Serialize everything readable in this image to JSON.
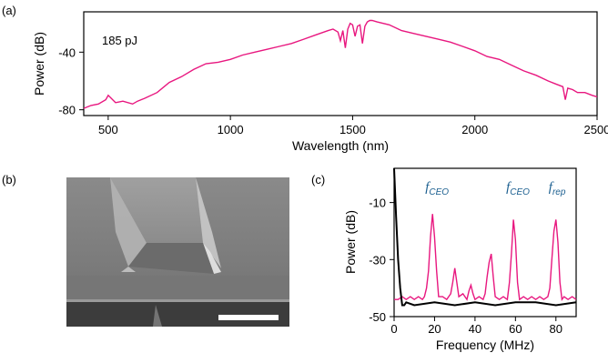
{
  "panel_a": {
    "label": "(a)",
    "ylabel": "Power (dB)",
    "xlabel": "Wavelength (nm)",
    "annotation": "185 pJ",
    "xticks": [
      "500",
      "1000",
      "1500",
      "2000",
      "2500"
    ],
    "yticks": [
      "-40",
      "-80"
    ]
  },
  "panel_b": {
    "label": "(b)"
  },
  "panel_c": {
    "label": "(c)",
    "ylabel": "Power (dB)",
    "xlabel": "Frequency (MHz)",
    "xticks": [
      "0",
      "20",
      "40",
      "60",
      "80"
    ],
    "yticks": [
      "-10",
      "-30",
      "-50"
    ],
    "peak_labels": [
      {
        "base": "f",
        "sub": "CEO"
      },
      {
        "base": "f",
        "sub": "CEO"
      },
      {
        "base": "f",
        "sub": "rep"
      }
    ]
  },
  "colors": {
    "trace": "#e8177f",
    "background_trace": "#000000",
    "label_blue": "#1a5e8f"
  },
  "chart_data": [
    {
      "type": "line",
      "panel": "a",
      "title": "",
      "xlabel": "Wavelength (nm)",
      "ylabel": "Power (dB)",
      "xlim": [
        400,
        2500
      ],
      "ylim": [
        -84,
        -12
      ],
      "annotation": "185 pJ",
      "series": [
        {
          "x": [
            400,
            430,
            460,
            490,
            500,
            530,
            560,
            600,
            620,
            650,
            700,
            750,
            800,
            850,
            900,
            950,
            1000,
            1050,
            1100,
            1150,
            1200,
            1250,
            1300,
            1350,
            1400,
            1420,
            1440,
            1450,
            1460,
            1470,
            1480,
            1490,
            1500,
            1510,
            1520,
            1530,
            1540,
            1550,
            1560,
            1570,
            1580,
            1600,
            1650,
            1700,
            1750,
            1800,
            1850,
            1900,
            1950,
            2000,
            2050,
            2100,
            2150,
            2200,
            2250,
            2300,
            2330,
            2360,
            2370,
            2380,
            2400,
            2420,
            2450,
            2480,
            2500
          ],
          "y": [
            -79,
            -77,
            -76,
            -73,
            -70,
            -75,
            -74,
            -76,
            -74,
            -72,
            -68,
            -61,
            -57,
            -52,
            -48,
            -47,
            -45,
            -42,
            -40,
            -38,
            -36,
            -34,
            -31,
            -28,
            -25,
            -24,
            -26,
            -32,
            -25,
            -37,
            -24,
            -20,
            -21,
            -29,
            -22,
            -21,
            -34,
            -22,
            -19,
            -18,
            -18,
            -19,
            -21,
            -25,
            -27,
            -29,
            -31,
            -33,
            -36,
            -39,
            -43,
            -45,
            -49,
            -53,
            -56,
            -60,
            -62,
            -64,
            -73,
            -65,
            -66,
            -68,
            -68,
            -70,
            -71
          ]
        }
      ]
    },
    {
      "type": "line",
      "panel": "c",
      "title": "",
      "xlabel": "Frequency (MHz)",
      "ylabel": "Power (dB)",
      "xlim": [
        0,
        90
      ],
      "ylim": [
        -50,
        2
      ],
      "series": [
        {
          "x": [
            0,
            2,
            4,
            6,
            8,
            10,
            12,
            14,
            15,
            16,
            17,
            18,
            19,
            20,
            21,
            22,
            24,
            26,
            28,
            29,
            30,
            31,
            32,
            34,
            36,
            37,
            38,
            39,
            40,
            42,
            44,
            45,
            46,
            47,
            48,
            49,
            50,
            52,
            54,
            56,
            57,
            58,
            59,
            60,
            61,
            62,
            64,
            66,
            68,
            70,
            72,
            74,
            76,
            77,
            78,
            79,
            80,
            81,
            82,
            83,
            84,
            86,
            88,
            90
          ],
          "y": [
            -44,
            -44,
            -43,
            -44,
            -43,
            -44,
            -43,
            -44,
            -43,
            -40,
            -34,
            -22,
            -14,
            -22,
            -34,
            -43,
            -43,
            -44,
            -42,
            -38,
            -33,
            -38,
            -43,
            -42,
            -44,
            -41,
            -39,
            -42,
            -44,
            -43,
            -44,
            -42,
            -36,
            -31,
            -28,
            -36,
            -43,
            -44,
            -43,
            -44,
            -38,
            -28,
            -16,
            -23,
            -38,
            -44,
            -43,
            -44,
            -43,
            -44,
            -43,
            -44,
            -43,
            -40,
            -30,
            -20,
            -16,
            -24,
            -38,
            -44,
            -43,
            -44,
            -43,
            -44
          ]
        },
        {
          "x": [
            0,
            1,
            2,
            3,
            4,
            5,
            6,
            10,
            20,
            30,
            40,
            50,
            60,
            70,
            80,
            90
          ],
          "y": [
            2,
            -15,
            -30,
            -40,
            -46,
            -46,
            -45,
            -46,
            -45,
            -46,
            -45,
            -46,
            -45,
            -45,
            -46,
            -45
          ]
        }
      ]
    }
  ]
}
